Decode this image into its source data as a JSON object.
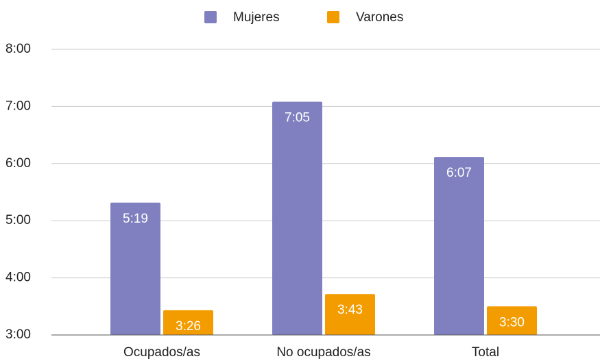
{
  "chart_data": {
    "type": "bar",
    "categories": [
      "Ocupados/as",
      "No ocupados/as",
      "Total"
    ],
    "series": [
      {
        "name": "Mujeres",
        "color": "#8080c0",
        "values": [
          319,
          425,
          367
        ],
        "value_labels": [
          "5:19",
          "7:05",
          "6:07"
        ]
      },
      {
        "name": "Varones",
        "color": "#f39c00",
        "values": [
          206,
          223,
          210
        ],
        "value_labels": [
          "3:26",
          "3:43",
          "3:30"
        ]
      }
    ],
    "ylim": [
      180,
      480
    ],
    "yticks": [
      {
        "value": 180,
        "label": "3:00"
      },
      {
        "value": 240,
        "label": "4:00"
      },
      {
        "value": 300,
        "label": "5:00"
      },
      {
        "value": 360,
        "label": "6:00"
      },
      {
        "value": 420,
        "label": "7:00"
      },
      {
        "value": 480,
        "label": "8:00"
      }
    ],
    "grid": true,
    "legend": "top"
  }
}
